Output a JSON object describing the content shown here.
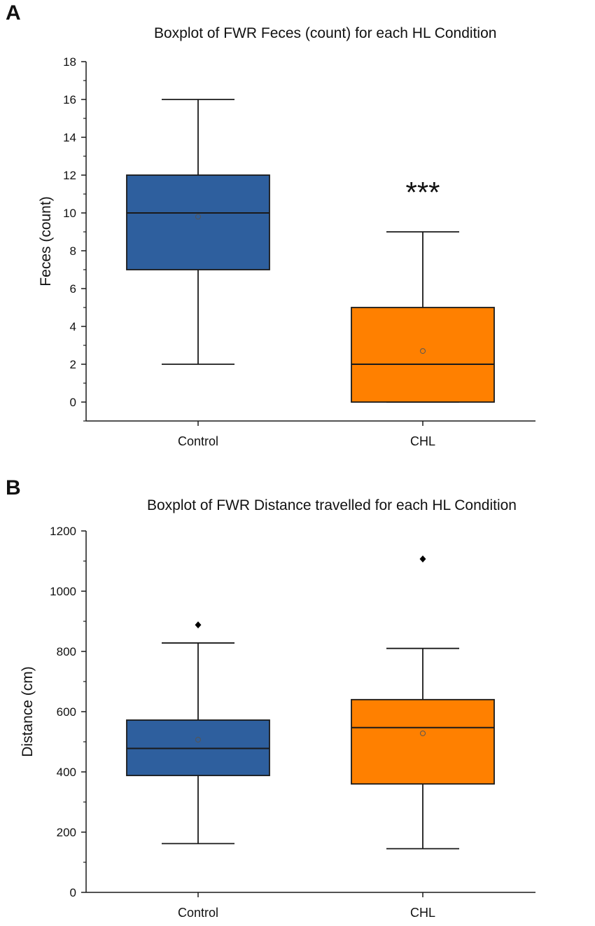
{
  "panels": [
    {
      "letter": "A",
      "chart_data": {
        "type": "box",
        "title": "Boxplot of FWR Feces (count) for each HL Condition",
        "xlabel": "",
        "ylabel": "Feces (count)",
        "ylim": [
          -1,
          18
        ],
        "yticks": [
          0,
          2,
          4,
          6,
          8,
          10,
          12,
          14,
          16,
          18
        ],
        "categories": [
          "Control",
          "CHL"
        ],
        "boxes": [
          {
            "name": "Control",
            "color": "#2e5f9e",
            "whisker_low": 2,
            "q1": 7,
            "median": 10,
            "q3": 12,
            "whisker_high": 16,
            "mean": 9.8,
            "outliers": []
          },
          {
            "name": "CHL",
            "color": "#ff8000",
            "whisker_low": 0,
            "q1": 0,
            "median": 2,
            "q3": 5,
            "whisker_high": 9,
            "mean": 2.7,
            "outliers": []
          }
        ],
        "annotations": [
          {
            "text": "***",
            "category": "CHL",
            "y": 11.3
          }
        ]
      }
    },
    {
      "letter": "B",
      "chart_data": {
        "type": "box",
        "title": "Boxplot of FWR Distance travelled for each HL Condition",
        "xlabel": "",
        "ylabel": "Distance (cm)",
        "ylim": [
          0,
          1200
        ],
        "yticks": [
          0,
          200,
          400,
          600,
          800,
          1000,
          1200
        ],
        "categories": [
          "Control",
          "CHL"
        ],
        "boxes": [
          {
            "name": "Control",
            "color": "#2e5f9e",
            "whisker_low": 162,
            "q1": 388,
            "median": 478,
            "q3": 572,
            "whisker_high": 828,
            "mean": 507,
            "outliers": [
              888
            ]
          },
          {
            "name": "CHL",
            "color": "#ff8000",
            "whisker_low": 145,
            "q1": 360,
            "median": 547,
            "q3": 640,
            "whisker_high": 810,
            "mean": 528,
            "outliers": [
              1107
            ]
          }
        ],
        "annotations": []
      }
    }
  ]
}
